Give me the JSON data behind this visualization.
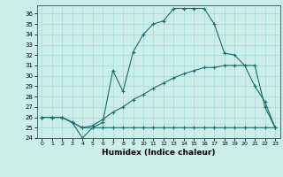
{
  "xlabel": "Humidex (Indice chaleur)",
  "bg_color": "#cceee8",
  "grid_color": "#aadddd",
  "line_color": "#1a6e6a",
  "xlim": [
    -0.5,
    23.5
  ],
  "ylim": [
    24,
    36.8
  ],
  "xticks": [
    0,
    1,
    2,
    3,
    4,
    5,
    6,
    7,
    8,
    9,
    10,
    11,
    12,
    13,
    14,
    15,
    16,
    17,
    18,
    19,
    20,
    21,
    22,
    23
  ],
  "yticks": [
    24,
    25,
    26,
    27,
    28,
    29,
    30,
    31,
    32,
    33,
    34,
    35,
    36
  ],
  "line1_x": [
    0,
    1,
    2,
    3,
    4,
    5,
    6,
    7,
    8,
    9,
    10,
    11,
    12,
    13,
    14,
    15,
    16,
    17,
    18,
    19,
    20,
    21,
    22,
    23
  ],
  "line1_y": [
    26,
    26,
    26,
    25.5,
    24,
    25,
    25.5,
    30.5,
    28.5,
    32.3,
    34,
    35,
    35.3,
    36.5,
    36.5,
    36.5,
    36.5,
    35,
    32.2,
    32,
    31,
    29,
    27.5,
    25
  ],
  "line2_x": [
    0,
    1,
    2,
    3,
    4,
    5,
    6,
    7,
    8,
    9,
    10,
    11,
    12,
    13,
    14,
    15,
    16,
    17,
    18,
    19,
    20,
    21,
    22,
    23
  ],
  "line2_y": [
    26,
    26,
    26,
    25.5,
    25,
    25,
    25,
    25,
    25,
    25,
    25,
    25,
    25,
    25,
    25,
    25,
    25,
    25,
    25,
    25,
    25,
    25,
    25,
    25
  ],
  "line3_x": [
    0,
    1,
    2,
    3,
    4,
    5,
    6,
    7,
    8,
    9,
    10,
    11,
    12,
    13,
    14,
    15,
    16,
    17,
    18,
    19,
    20,
    21,
    22,
    23
  ],
  "line3_y": [
    26,
    26,
    26,
    25.5,
    25,
    25.2,
    25.8,
    26.5,
    27,
    27.7,
    28.2,
    28.8,
    29.3,
    29.8,
    30.2,
    30.5,
    30.8,
    30.8,
    31,
    31,
    31,
    31,
    27,
    25
  ]
}
